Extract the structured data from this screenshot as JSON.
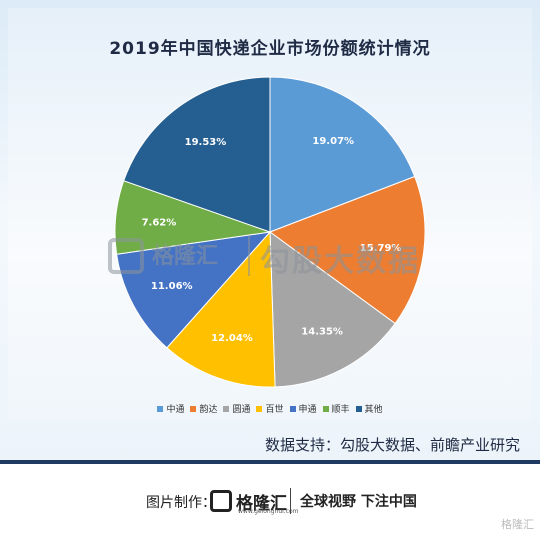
{
  "chart_data": {
    "type": "pie",
    "title": "2019年中国快递企业市场份额统计情况",
    "slices": [
      {
        "label": "中通",
        "value": 19.07,
        "value_label": "19.07%",
        "color": "#5b9bd5"
      },
      {
        "label": "韵达",
        "value": 15.79,
        "value_label": "15.79%",
        "color": "#ed7d31"
      },
      {
        "label": "圆通",
        "value": 14.35,
        "value_label": "14.35%",
        "color": "#a5a5a5"
      },
      {
        "label": "百世",
        "value": 12.04,
        "value_label": "12.04%",
        "color": "#ffc000"
      },
      {
        "label": "申通",
        "value": 11.06,
        "value_label": "11.06%",
        "color": "#4472c4"
      },
      {
        "label": "顺丰",
        "value": 7.62,
        "value_label": "7.62%",
        "color": "#70ad47"
      },
      {
        "label": "其他",
        "value": 19.53,
        "value_label": "19.53%",
        "color": "#255e91"
      }
    ],
    "legend_position": "bottom"
  },
  "watermark": {
    "brand": "格隆汇",
    "url": "www.gelonghui.com",
    "text": "勾股大数据"
  },
  "source": "数据支持：勾股大数据、前瞻产业研究",
  "footer": {
    "made_by": "图片制作：",
    "brand": "格隆汇",
    "url": "www.gelonghui.com",
    "slogan": "全球视野 下注中国",
    "corner": "格隆汇"
  }
}
